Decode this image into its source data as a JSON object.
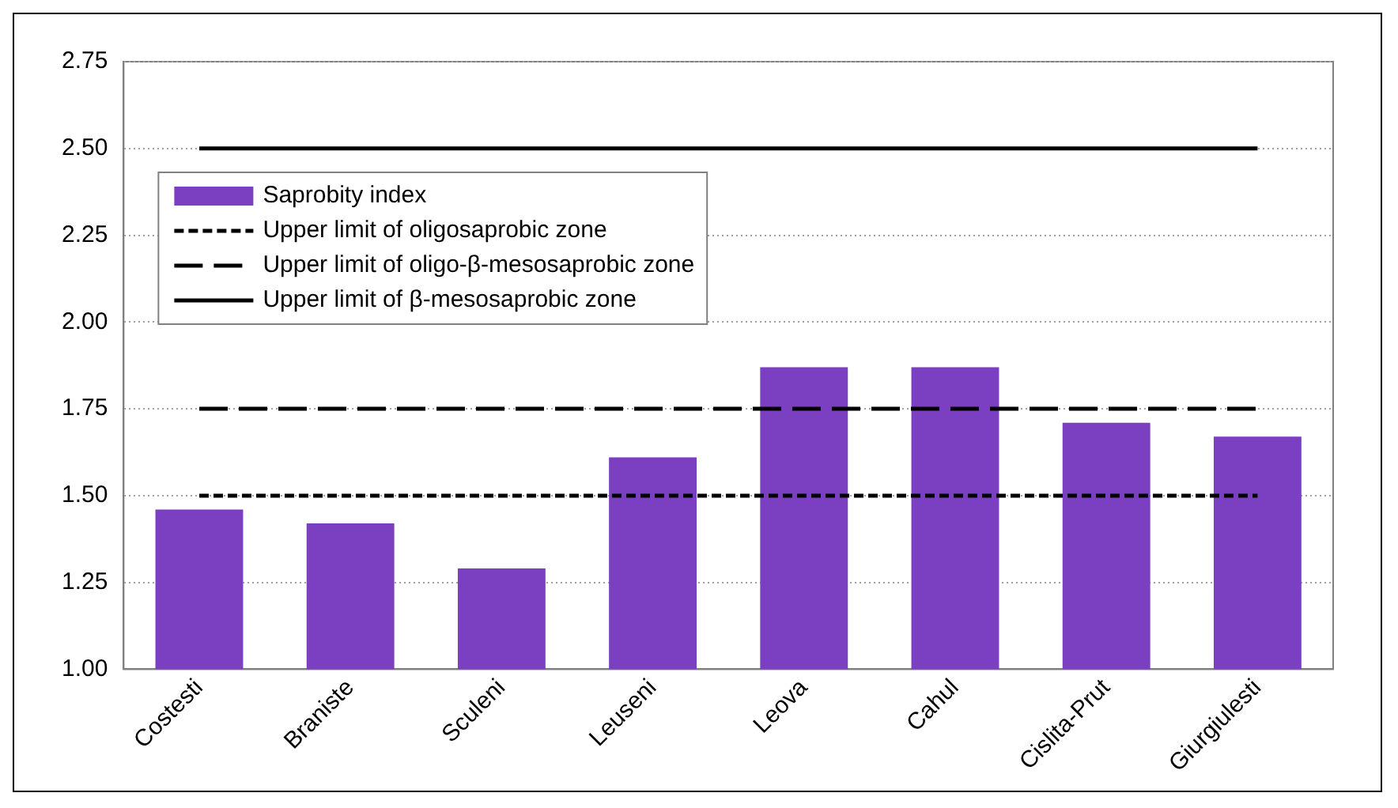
{
  "chart_data": {
    "type": "bar",
    "categories": [
      "Costesti",
      "Braniste",
      "Sculeni",
      "Leuseni",
      "Leova",
      "Cahul",
      "Cislita-Prut",
      "Giurgiulesti"
    ],
    "series": [
      {
        "name": "Saprobity index",
        "color": "#7b3fc1",
        "values": [
          1.46,
          1.42,
          1.29,
          1.61,
          1.87,
          1.87,
          1.71,
          1.67
        ]
      },
      {
        "name": "Upper limit of oligosaprobic zone",
        "type": "line",
        "color": "#000000",
        "line_style": "dotted",
        "values": [
          1.5,
          1.5,
          1.5,
          1.5,
          1.5,
          1.5,
          1.5,
          1.5
        ]
      },
      {
        "name": "Upper limit of oligo-β-mesosaprobic zone",
        "type": "line",
        "color": "#000000",
        "line_style": "dashed",
        "values": [
          1.75,
          1.75,
          1.75,
          1.75,
          1.75,
          1.75,
          1.75,
          1.75
        ]
      },
      {
        "name": "Upper limit of β-mesosaprobic zone",
        "type": "line",
        "color": "#000000",
        "line_style": "solid",
        "values": [
          2.5,
          2.5,
          2.5,
          2.5,
          2.5,
          2.5,
          2.5,
          2.5
        ]
      }
    ],
    "ylim": [
      1,
      2.75
    ],
    "yticks": [
      {
        "value": 1,
        "label": "1.00"
      },
      {
        "value": 1.25,
        "label": "1.25"
      },
      {
        "value": 1.5,
        "label": "1.50"
      },
      {
        "value": 1.75,
        "label": "1.75"
      },
      {
        "value": 2,
        "label": "2.00"
      },
      {
        "value": 2.25,
        "label": "2.25"
      },
      {
        "value": 2.5,
        "label": "2.50"
      },
      {
        "value": 2.75,
        "label": "2.75"
      }
    ],
    "grid": "y",
    "legend": "top left",
    "marker": "none"
  }
}
